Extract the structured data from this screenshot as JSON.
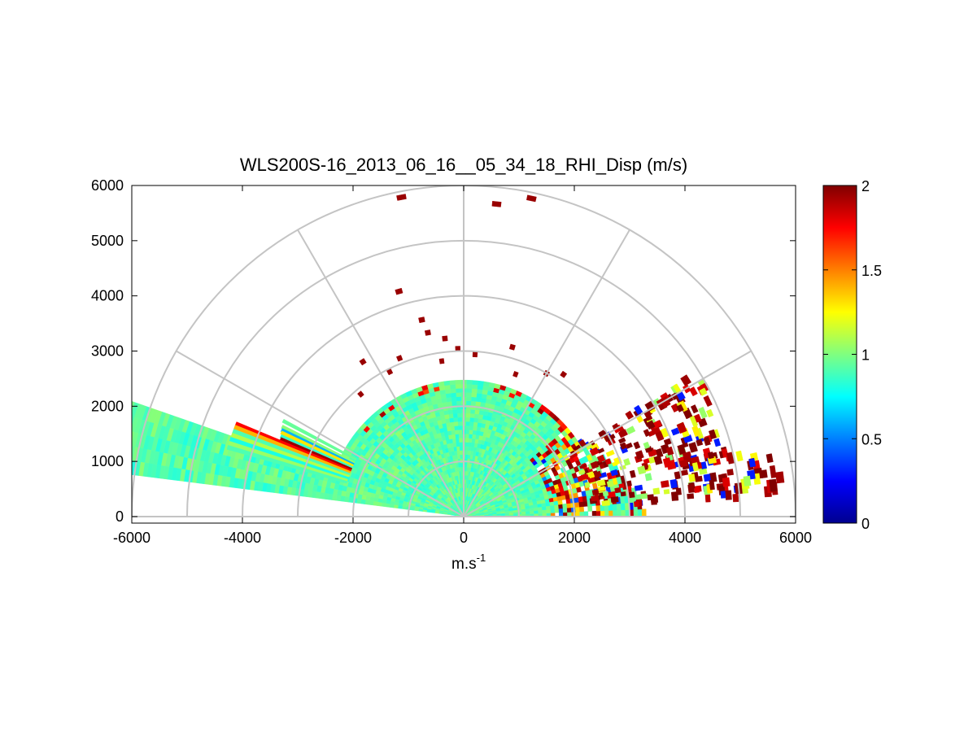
{
  "chart_data": {
    "type": "heatmap",
    "projection": "polar-rhi-half-disk",
    "title": "WLS200S-16_2013_06_16__05_34_18_RHI_Disp (m/s)",
    "xlabel_base": "m.s",
    "xlabel_exp": "-1",
    "xlim": [
      -6000,
      6000
    ],
    "ylim": [
      0,
      6000
    ],
    "x_ticks": [
      -6000,
      -4000,
      -2000,
      0,
      2000,
      4000,
      6000
    ],
    "x_tick_labels": [
      "-6000",
      "-4000",
      "-2000",
      "0",
      "2000",
      "4000",
      "6000"
    ],
    "y_ticks": [
      0,
      1000,
      2000,
      3000,
      4000,
      5000,
      6000
    ],
    "y_tick_labels": [
      "0",
      "1000",
      "2000",
      "3000",
      "4000",
      "5000",
      "6000"
    ],
    "polar_grid": {
      "rings": [
        1000,
        2000,
        3000,
        4000,
        5000,
        6000
      ],
      "spokes_deg": [
        0,
        30,
        60,
        90,
        120,
        150,
        180
      ]
    },
    "colorbar": {
      "colormap": "jet",
      "clim": [
        0,
        2
      ],
      "ticks": [
        0,
        0.5,
        1,
        1.5,
        2
      ],
      "tick_labels": [
        "0",
        "0.5",
        "1",
        "1.5",
        "2"
      ]
    },
    "grid": true,
    "legend": "none",
    "color_scale": [
      "#00008f",
      "#0000ff",
      "#00ffff",
      "#ffff00",
      "#ff0000",
      "#800000"
    ]
  }
}
